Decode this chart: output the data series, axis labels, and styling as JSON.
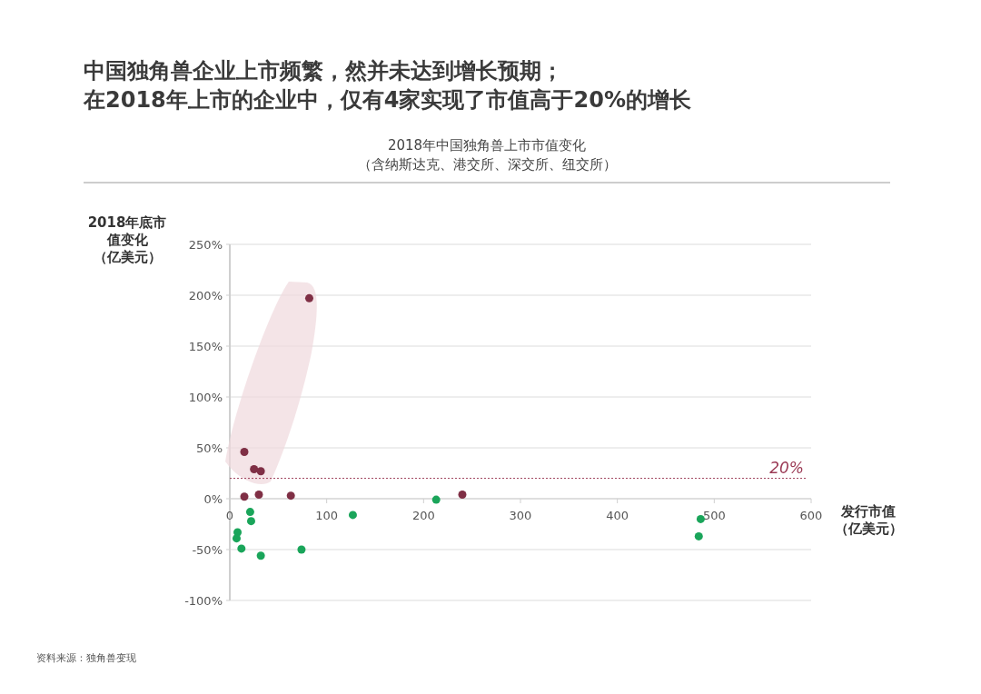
{
  "chart_data": {
    "type": "scatter",
    "title": "中国独角兽企业上市频繁，然并未达到增长预期；在2018年上市的企业中，仅有4家实现了市值高于20%的增长",
    "subtitle": "2018年中国独角兽上市市值变化（含纳斯达克、港交所、深交所、纽交所）",
    "xlabel": "发行市值（亿美元）",
    "ylabel": "2018年底市值变化（亿美元）",
    "marker": "circle",
    "grid": "y",
    "series": [
      {
        "color": "#7f2f45",
        "x": [
          15,
          25,
          32,
          15,
          30,
          63,
          82,
          240
        ],
        "values": [
          46,
          29,
          27,
          2,
          4,
          3,
          197,
          4
        ]
      },
      {
        "color": "#1aa55a",
        "x": [
          21,
          22,
          8,
          7,
          12,
          32,
          74,
          127,
          213,
          486,
          484
        ],
        "values": [
          -13,
          -22,
          -33,
          -39,
          -49,
          -56,
          -50,
          -16,
          -1,
          -20,
          -37
        ]
      }
    ],
    "xlim": [
      0,
      600
    ],
    "xticks": [
      0,
      100,
      200,
      300,
      400,
      500,
      600
    ],
    "ylim": [
      -100,
      250
    ],
    "yticks": [
      {
        "value": -100,
        "label": "-100%"
      },
      {
        "value": -50,
        "label": "-50%"
      },
      {
        "value": 0,
        "label": "0%"
      },
      {
        "value": 50,
        "label": "50%"
      },
      {
        "value": 100,
        "label": "100%"
      },
      {
        "value": 150,
        "label": "150%"
      },
      {
        "value": 200,
        "label": "200%"
      },
      {
        "value": 250,
        "label": "250%"
      }
    ],
    "ref_lines": [
      {
        "axis": "y",
        "value": 20,
        "label": "20%",
        "color": "#9b3a55",
        "line_style": "dotted"
      }
    ],
    "annotations": [
      "资料来源：独角兽变现"
    ]
  }
}
